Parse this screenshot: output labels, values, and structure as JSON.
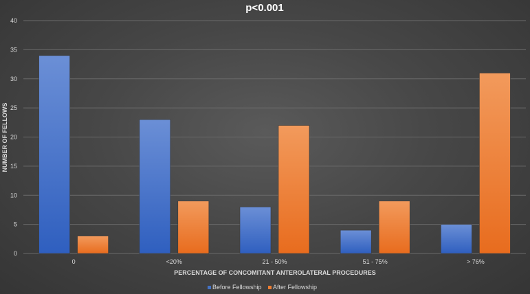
{
  "chart_data": {
    "type": "bar",
    "title": "p<0.001",
    "xlabel": "PERCENTAGE OF CONCOMITANT ANTEROLATERAL PROCEDURES",
    "ylabel": "NUMBER OF FELLOWS",
    "categories": [
      "0",
      "<20%",
      "21 - 50%",
      "51 - 75%",
      "> 76%"
    ],
    "ylim": [
      0,
      40
    ],
    "yticks": [
      0,
      5,
      10,
      15,
      20,
      25,
      30,
      35,
      40
    ],
    "grid": true,
    "legend_position": "bottom",
    "series": [
      {
        "name": "Before Fellowship",
        "values": [
          34,
          23,
          8,
          4,
          5
        ],
        "color": "#4472c4"
      },
      {
        "name": "After Fellowship",
        "values": [
          3,
          9,
          22,
          9,
          31
        ],
        "color": "#ed7d31"
      }
    ]
  }
}
